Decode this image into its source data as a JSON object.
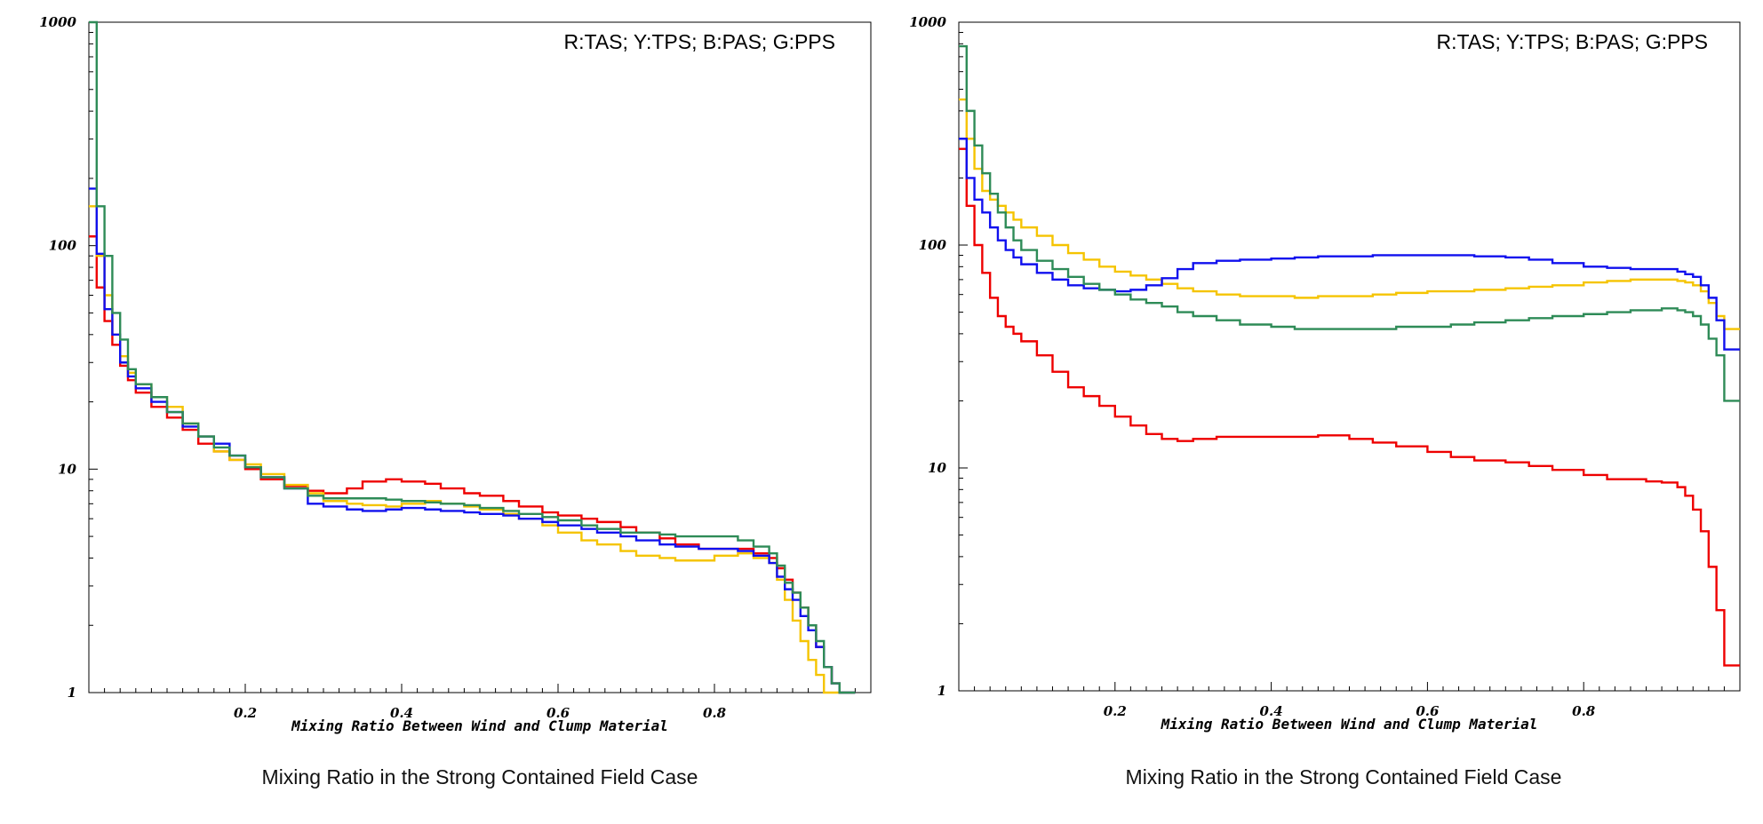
{
  "chart_data": [
    {
      "type": "line",
      "step": true,
      "legend_text": "R:TAS; Y:TPS; B:PAS; G:PPS",
      "legend_position": "top-right",
      "xlabel": "Mixing Ratio Between Wind and Clump Material",
      "caption": "Mixing Ratio in the Strong Contained Field Case",
      "xlim": [
        0,
        1
      ],
      "ylim": [
        1,
        1000
      ],
      "yscale": "log",
      "xticks": [
        "0.2",
        "0.4",
        "0.6",
        "0.8"
      ],
      "yticks": [
        "1",
        "10",
        "100",
        "1000"
      ],
      "grid": false,
      "series": [
        {
          "color": "#ee0000",
          "x": [
            0.0,
            0.01,
            0.02,
            0.03,
            0.04,
            0.05,
            0.06,
            0.08,
            0.1,
            0.12,
            0.14,
            0.16,
            0.18,
            0.2,
            0.22,
            0.25,
            0.28,
            0.3,
            0.33,
            0.35,
            0.38,
            0.4,
            0.43,
            0.45,
            0.48,
            0.5,
            0.53,
            0.55,
            0.58,
            0.6,
            0.63,
            0.65,
            0.68,
            0.7,
            0.73,
            0.75,
            0.78,
            0.8,
            0.83,
            0.85,
            0.87,
            0.88,
            0.89,
            0.9,
            0.91,
            0.92,
            0.93,
            0.94,
            0.95,
            0.96,
            0.97
          ],
          "y": [
            110,
            65,
            46,
            36,
            29,
            25,
            22,
            19,
            17,
            15,
            13,
            12,
            11,
            10,
            9,
            8.4,
            8.0,
            7.8,
            8.2,
            8.8,
            9.0,
            8.8,
            8.6,
            8.2,
            7.8,
            7.6,
            7.2,
            6.8,
            6.4,
            6.2,
            6.0,
            5.8,
            5.5,
            5.2,
            4.9,
            4.6,
            4.4,
            4.4,
            4.4,
            4.2,
            4.0,
            3.6,
            3.2,
            2.8,
            2.4,
            2.0,
            1.6,
            1.3,
            1.1,
            1.0,
            1.0
          ]
        },
        {
          "color": "#f5c400",
          "x": [
            0.0,
            0.01,
            0.02,
            0.03,
            0.04,
            0.05,
            0.06,
            0.08,
            0.1,
            0.12,
            0.14,
            0.16,
            0.18,
            0.2,
            0.22,
            0.25,
            0.28,
            0.3,
            0.33,
            0.35,
            0.38,
            0.4,
            0.43,
            0.45,
            0.48,
            0.5,
            0.53,
            0.55,
            0.58,
            0.6,
            0.63,
            0.65,
            0.68,
            0.7,
            0.73,
            0.75,
            0.78,
            0.8,
            0.83,
            0.85,
            0.87,
            0.88,
            0.89,
            0.9,
            0.91,
            0.92,
            0.93,
            0.94,
            0.95,
            0.96,
            0.97
          ],
          "y": [
            150,
            90,
            60,
            40,
            32,
            27,
            24,
            21,
            19,
            16,
            14,
            12,
            11,
            10.5,
            9.5,
            8.5,
            7.8,
            7.2,
            7.0,
            6.9,
            6.8,
            7.0,
            7.2,
            7.0,
            6.8,
            6.6,
            6.3,
            6.0,
            5.6,
            5.2,
            4.8,
            4.6,
            4.3,
            4.1,
            4.0,
            3.9,
            3.9,
            4.1,
            4.2,
            4.0,
            3.8,
            3.2,
            2.6,
            2.1,
            1.7,
            1.4,
            1.2,
            1.0,
            1.0,
            1.0,
            1.0
          ]
        },
        {
          "color": "#1010ee",
          "x": [
            0.0,
            0.01,
            0.02,
            0.03,
            0.04,
            0.05,
            0.06,
            0.08,
            0.1,
            0.12,
            0.14,
            0.16,
            0.18,
            0.2,
            0.22,
            0.25,
            0.28,
            0.3,
            0.33,
            0.35,
            0.38,
            0.4,
            0.43,
            0.45,
            0.48,
            0.5,
            0.53,
            0.55,
            0.58,
            0.6,
            0.63,
            0.65,
            0.68,
            0.7,
            0.73,
            0.75,
            0.78,
            0.8,
            0.83,
            0.85,
            0.87,
            0.88,
            0.89,
            0.9,
            0.91,
            0.92,
            0.93,
            0.94,
            0.95,
            0.96,
            0.97
          ],
          "y": [
            180,
            92,
            52,
            40,
            30,
            26,
            23,
            20,
            18,
            15.5,
            14,
            13,
            11.5,
            10.2,
            9.2,
            8.2,
            7.0,
            6.8,
            6.6,
            6.5,
            6.6,
            6.7,
            6.6,
            6.5,
            6.4,
            6.3,
            6.2,
            6.0,
            5.8,
            5.6,
            5.4,
            5.2,
            5.0,
            4.8,
            4.6,
            4.5,
            4.4,
            4.4,
            4.3,
            4.1,
            3.8,
            3.3,
            2.9,
            2.6,
            2.2,
            1.9,
            1.6,
            1.3,
            1.1,
            1.0,
            1.0
          ]
        },
        {
          "color": "#2e8b57",
          "x": [
            0.0,
            0.01,
            0.02,
            0.03,
            0.04,
            0.05,
            0.06,
            0.08,
            0.1,
            0.12,
            0.14,
            0.16,
            0.18,
            0.2,
            0.22,
            0.25,
            0.28,
            0.3,
            0.33,
            0.35,
            0.38,
            0.4,
            0.43,
            0.45,
            0.48,
            0.5,
            0.53,
            0.55,
            0.58,
            0.6,
            0.63,
            0.65,
            0.68,
            0.7,
            0.73,
            0.75,
            0.78,
            0.8,
            0.83,
            0.85,
            0.87,
            0.88,
            0.89,
            0.9,
            0.91,
            0.92,
            0.93,
            0.94,
            0.95,
            0.96,
            0.97
          ],
          "y": [
            1000,
            150,
            90,
            50,
            38,
            28,
            24,
            21,
            18,
            16,
            14,
            12.5,
            11.5,
            10.2,
            9.2,
            8.2,
            7.6,
            7.4,
            7.4,
            7.4,
            7.3,
            7.2,
            7.1,
            7.0,
            6.9,
            6.7,
            6.5,
            6.3,
            6.1,
            5.9,
            5.6,
            5.4,
            5.2,
            5.2,
            5.1,
            5.0,
            5.0,
            5.0,
            4.8,
            4.5,
            4.2,
            3.7,
            3.1,
            2.8,
            2.4,
            2.0,
            1.7,
            1.3,
            1.1,
            1.0,
            1.0
          ]
        }
      ]
    },
    {
      "type": "line",
      "step": true,
      "legend_text": "R:TAS; Y:TPS; B:PAS; G:PPS",
      "legend_position": "top-right",
      "xlabel": "Mixing Ratio Between Wind and Clump Material",
      "caption": "Mixing Ratio in the Strong Contained Field Case",
      "xlim": [
        0,
        1
      ],
      "ylim": [
        1,
        1000
      ],
      "yscale": "log",
      "xticks": [
        "0.2",
        "0.4",
        "0.6",
        "0.8"
      ],
      "yticks": [
        "1",
        "10",
        "100",
        "1000"
      ],
      "grid": false,
      "series": [
        {
          "color": "#ee0000",
          "x": [
            0.0,
            0.01,
            0.02,
            0.03,
            0.04,
            0.05,
            0.06,
            0.07,
            0.08,
            0.1,
            0.12,
            0.14,
            0.16,
            0.18,
            0.2,
            0.22,
            0.24,
            0.26,
            0.28,
            0.3,
            0.33,
            0.36,
            0.4,
            0.43,
            0.46,
            0.5,
            0.53,
            0.56,
            0.6,
            0.63,
            0.66,
            0.7,
            0.73,
            0.76,
            0.8,
            0.83,
            0.86,
            0.88,
            0.9,
            0.92,
            0.93,
            0.94,
            0.95,
            0.96,
            0.97,
            0.98,
            0.99
          ],
          "y": [
            270,
            150,
            100,
            75,
            58,
            48,
            43,
            40,
            37,
            32,
            27,
            23,
            21,
            19,
            17,
            15.5,
            14.2,
            13.5,
            13.2,
            13.5,
            13.8,
            13.8,
            13.8,
            13.8,
            14.0,
            13.5,
            13.0,
            12.5,
            11.8,
            11.2,
            10.8,
            10.6,
            10.2,
            9.8,
            9.3,
            8.9,
            8.9,
            8.7,
            8.6,
            8.2,
            7.5,
            6.5,
            5.2,
            3.6,
            2.3,
            1.3,
            1.3
          ]
        },
        {
          "color": "#f5c400",
          "x": [
            0.0,
            0.01,
            0.02,
            0.03,
            0.04,
            0.05,
            0.06,
            0.07,
            0.08,
            0.1,
            0.12,
            0.14,
            0.16,
            0.18,
            0.2,
            0.22,
            0.24,
            0.26,
            0.28,
            0.3,
            0.33,
            0.36,
            0.4,
            0.43,
            0.46,
            0.5,
            0.53,
            0.56,
            0.6,
            0.63,
            0.66,
            0.7,
            0.73,
            0.76,
            0.8,
            0.83,
            0.86,
            0.88,
            0.9,
            0.92,
            0.93,
            0.94,
            0.95,
            0.96,
            0.97,
            0.98,
            0.99
          ],
          "y": [
            450,
            300,
            220,
            175,
            160,
            150,
            140,
            130,
            120,
            110,
            100,
            92,
            86,
            80,
            76,
            73,
            70,
            67,
            64,
            62,
            60,
            59,
            59,
            58,
            59,
            59,
            60,
            61,
            62,
            62,
            63,
            64,
            65,
            66,
            68,
            69,
            70,
            70,
            70,
            69,
            68,
            66,
            62,
            55,
            48,
            42,
            42
          ]
        },
        {
          "color": "#1010ee",
          "x": [
            0.0,
            0.01,
            0.02,
            0.03,
            0.04,
            0.05,
            0.06,
            0.07,
            0.08,
            0.1,
            0.12,
            0.14,
            0.16,
            0.18,
            0.2,
            0.22,
            0.24,
            0.26,
            0.28,
            0.3,
            0.33,
            0.36,
            0.4,
            0.43,
            0.46,
            0.5,
            0.53,
            0.56,
            0.6,
            0.63,
            0.66,
            0.7,
            0.73,
            0.76,
            0.8,
            0.83,
            0.86,
            0.88,
            0.9,
            0.92,
            0.93,
            0.94,
            0.95,
            0.96,
            0.97,
            0.98,
            0.99
          ],
          "y": [
            300,
            200,
            160,
            140,
            120,
            105,
            95,
            88,
            82,
            75,
            70,
            66,
            64,
            63,
            62,
            63,
            66,
            71,
            78,
            83,
            85,
            86,
            87,
            88,
            89,
            89,
            90,
            90,
            90,
            90,
            89,
            88,
            86,
            83,
            80,
            79,
            78,
            78,
            78,
            76,
            74,
            72,
            66,
            58,
            46,
            34,
            34
          ]
        },
        {
          "color": "#2e8b57",
          "x": [
            0.0,
            0.01,
            0.02,
            0.03,
            0.04,
            0.05,
            0.06,
            0.07,
            0.08,
            0.1,
            0.12,
            0.14,
            0.16,
            0.18,
            0.2,
            0.22,
            0.24,
            0.26,
            0.28,
            0.3,
            0.33,
            0.36,
            0.4,
            0.43,
            0.46,
            0.5,
            0.53,
            0.56,
            0.6,
            0.63,
            0.66,
            0.7,
            0.73,
            0.76,
            0.8,
            0.83,
            0.86,
            0.88,
            0.9,
            0.92,
            0.93,
            0.94,
            0.95,
            0.96,
            0.97,
            0.98,
            0.99
          ],
          "y": [
            780,
            400,
            280,
            210,
            170,
            140,
            120,
            105,
            95,
            85,
            78,
            72,
            67,
            63,
            60,
            57,
            55,
            53,
            50,
            48,
            46,
            44,
            43,
            42,
            42,
            42,
            42,
            43,
            43,
            44,
            45,
            46,
            47,
            48,
            49,
            50,
            51,
            51,
            52,
            51,
            50,
            48,
            44,
            38,
            32,
            20,
            20
          ]
        }
      ]
    }
  ]
}
